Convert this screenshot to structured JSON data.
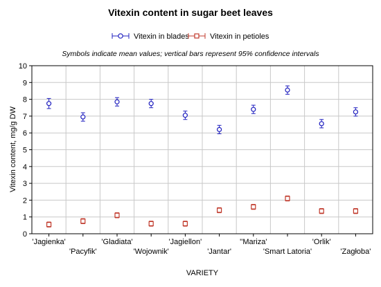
{
  "chart_data": {
    "type": "scatter",
    "title": "Vitexin content in sugar beet leaves",
    "subtitle": "Symbols indicate mean values; vertical bars represent 95% confidence intervals",
    "xlabel": "VARIETY",
    "ylabel": "Vitexin content, mg/g DW",
    "ylim": [
      0,
      10
    ],
    "yticks": [
      0,
      1,
      2,
      3,
      4,
      5,
      6,
      7,
      8,
      9,
      10
    ],
    "grid": true,
    "legend_position": "top",
    "categories": [
      "'Jagienka'",
      "'Pacyfik'",
      "'Gladiata'",
      "'Wojownik'",
      "'Jagiellon'",
      "'Jantar'",
      "''Mariza'",
      "'Smart Latoria'",
      "'Orlik'",
      "'Zagłoba'"
    ],
    "series": [
      {
        "name": "Vitexin in blades",
        "color": "#1f1fbf",
        "marker": "circle",
        "values": [
          7.75,
          6.95,
          7.85,
          7.75,
          7.05,
          6.2,
          7.4,
          8.55,
          6.55,
          7.25
        ],
        "ci_low": [
          7.45,
          6.7,
          7.6,
          7.5,
          6.8,
          5.95,
          7.15,
          8.3,
          6.3,
          7.0
        ],
        "ci_high": [
          8.05,
          7.2,
          8.1,
          8.0,
          7.3,
          6.45,
          7.65,
          8.8,
          6.8,
          7.5
        ]
      },
      {
        "name": "Vitexin in petioles",
        "color": "#c0392b",
        "marker": "square",
        "values": [
          0.55,
          0.75,
          1.1,
          0.6,
          0.6,
          1.4,
          1.6,
          2.1,
          1.35,
          1.35
        ],
        "ci_low": [
          0.4,
          0.6,
          0.95,
          0.45,
          0.45,
          1.25,
          1.45,
          1.95,
          1.2,
          1.2
        ],
        "ci_high": [
          0.7,
          0.9,
          1.25,
          0.75,
          0.75,
          1.55,
          1.75,
          2.25,
          1.5,
          1.5
        ]
      }
    ]
  }
}
